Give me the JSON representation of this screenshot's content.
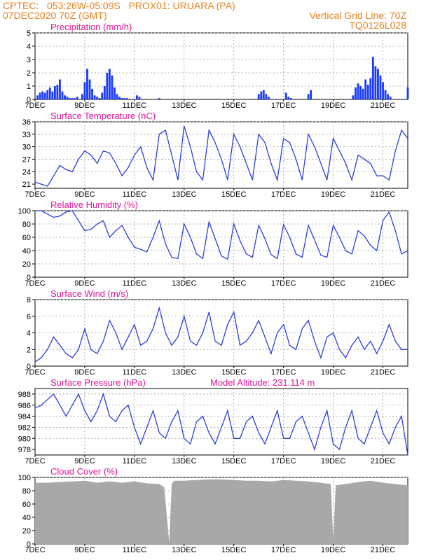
{
  "header": {
    "line1": "CPTEC:   053:26W-05:09S   PROX01: URUARA (PA)",
    "line2": "07DEC2020 70Z (GMT)",
    "right1": "Vertical Grid Line: 70Z",
    "right2": "TQ0126L028"
  },
  "x_ticks": [
    "7DEC",
    "9DEC",
    "11DEC",
    "13DEC",
    "15DEC",
    "17DEC",
    "19DEC",
    "21DEC"
  ],
  "panels": {
    "precip": {
      "title": "Precipitation (mm/h)",
      "yticks": [
        "0",
        "1",
        "2",
        "3",
        "4",
        "5"
      ]
    },
    "temp": {
      "title": "Surface Temperature (nC)",
      "yticks": [
        "21",
        "24",
        "27",
        "30",
        "33",
        "36"
      ]
    },
    "rh": {
      "title": "Relative Humidity (%)",
      "yticks": [
        "0",
        "20",
        "40",
        "60",
        "80",
        "100"
      ]
    },
    "wind": {
      "title": "Surface Wind (m/s)",
      "yticks": [
        "0",
        "2",
        "4",
        "6",
        "8"
      ]
    },
    "press": {
      "title": "Surface Pressure (hPa)",
      "extra": "Model Altitude: 231.114 m",
      "yticks": [
        "978",
        "980",
        "982",
        "984",
        "986",
        "988"
      ]
    },
    "cloud": {
      "title": "Cloud Cover (%)",
      "yticks": [
        "0",
        "20",
        "40",
        "60",
        "80",
        "100"
      ]
    }
  },
  "chart_data": [
    {
      "type": "bar",
      "title": "Precipitation (mm/h)",
      "ylabel": "mm/h",
      "ylim": [
        0,
        5
      ],
      "x_unit": "days since 7DEC2020",
      "x": [
        0.1,
        0.2,
        0.3,
        0.4,
        0.5,
        0.6,
        0.7,
        0.8,
        0.9,
        1.0,
        1.1,
        1.2,
        1.3,
        1.4,
        1.5,
        1.6,
        1.7,
        1.9,
        2.0,
        2.1,
        2.2,
        2.3,
        2.4,
        2.5,
        2.6,
        2.7,
        2.8,
        2.9,
        3.0,
        3.1,
        3.2,
        3.3,
        3.4,
        3.5,
        3.6,
        3.7,
        4.1,
        4.2,
        5.0,
        9.0,
        9.1,
        9.2,
        9.3,
        9.4,
        10.1,
        10.2,
        10.3,
        11.0,
        11.1,
        12.8,
        12.9,
        13.0,
        13.1,
        13.2,
        13.3,
        13.4,
        13.5,
        13.6,
        13.7,
        13.8,
        13.9,
        14.0,
        14.1,
        14.2,
        14.3,
        15.0
      ],
      "values": [
        0.3,
        0.5,
        0.6,
        0.5,
        0.7,
        0.9,
        0.6,
        1.0,
        1.1,
        1.5,
        0.6,
        0.3,
        0.2,
        0.1,
        0.1,
        0.1,
        0.2,
        0.4,
        1.3,
        2.3,
        1.5,
        0.8,
        0.3,
        0.2,
        0.1,
        0.5,
        1.0,
        2.0,
        2.3,
        1.8,
        0.9,
        0.4,
        0.2,
        0.1,
        0.1,
        0.1,
        0.3,
        0.2,
        0.1,
        0.4,
        0.6,
        0.7,
        0.4,
        0.2,
        0.5,
        0.2,
        0.1,
        0.4,
        0.7,
        0.3,
        0.9,
        1.2,
        1.0,
        0.8,
        1.5,
        1.1,
        1.6,
        3.2,
        2.5,
        2.3,
        1.8,
        1.3,
        0.7,
        0.4,
        0.2,
        0.9
      ]
    },
    {
      "type": "line",
      "title": "Surface Temperature (nC)",
      "ylim": [
        20,
        36
      ],
      "x_unit": "days since 7DEC2020",
      "x": [
        0,
        0.25,
        0.5,
        0.75,
        1,
        1.25,
        1.5,
        1.75,
        2,
        2.25,
        2.5,
        2.75,
        3,
        3.25,
        3.5,
        3.75,
        4,
        4.25,
        4.5,
        4.75,
        5,
        5.25,
        5.5,
        5.75,
        6,
        6.25,
        6.5,
        6.75,
        7,
        7.25,
        7.5,
        7.75,
        8,
        8.25,
        8.5,
        8.75,
        9,
        9.25,
        9.5,
        9.75,
        10,
        10.25,
        10.5,
        10.75,
        11,
        11.25,
        11.5,
        11.75,
        12,
        12.25,
        12.5,
        12.75,
        13,
        13.25,
        13.5,
        13.75,
        14,
        14.25,
        14.5,
        14.75,
        15
      ],
      "values": [
        21.5,
        21,
        20.5,
        23,
        25.5,
        24.5,
        24,
        27,
        29,
        28,
        26,
        29,
        28.5,
        26,
        23,
        25,
        28,
        30,
        25,
        22,
        33,
        34,
        28,
        22,
        35,
        30,
        24,
        22,
        34,
        31,
        27,
        22,
        33,
        30,
        26,
        22,
        33,
        31,
        26,
        22,
        32,
        31,
        27,
        22,
        33,
        30,
        26,
        22,
        32,
        29,
        26,
        22,
        28,
        27,
        26,
        23,
        23,
        22,
        29,
        34,
        32
      ]
    },
    {
      "type": "line",
      "title": "Relative Humidity (%)",
      "ylim": [
        0,
        100
      ],
      "x_unit": "days since 7DEC2020",
      "x": [
        0,
        0.25,
        0.5,
        0.75,
        1,
        1.25,
        1.5,
        1.75,
        2,
        2.25,
        2.5,
        2.75,
        3,
        3.25,
        3.5,
        3.75,
        4,
        4.25,
        4.5,
        4.75,
        5,
        5.25,
        5.5,
        5.75,
        6,
        6.25,
        6.5,
        6.75,
        7,
        7.25,
        7.5,
        7.75,
        8,
        8.25,
        8.5,
        8.75,
        9,
        9.25,
        9.5,
        9.75,
        10,
        10.25,
        10.5,
        10.75,
        11,
        11.25,
        11.5,
        11.75,
        12,
        12.25,
        12.5,
        12.75,
        13,
        13.25,
        13.5,
        13.75,
        14,
        14.25,
        14.5,
        14.75,
        15
      ],
      "values": [
        100,
        100,
        95,
        90,
        92,
        98,
        100,
        85,
        70,
        72,
        80,
        85,
        60,
        70,
        78,
        60,
        45,
        42,
        38,
        60,
        85,
        50,
        30,
        28,
        80,
        60,
        35,
        28,
        83,
        58,
        32,
        27,
        80,
        55,
        35,
        30,
        78,
        58,
        34,
        28,
        79,
        60,
        35,
        30,
        78,
        56,
        33,
        30,
        78,
        60,
        40,
        35,
        70,
        62,
        48,
        40,
        85,
        98,
        70,
        35,
        40
      ]
    },
    {
      "type": "line",
      "title": "Surface Wind (m/s)",
      "ylim": [
        0,
        8
      ],
      "x_unit": "days since 7DEC2020",
      "x": [
        0,
        0.25,
        0.5,
        0.75,
        1,
        1.25,
        1.5,
        1.75,
        2,
        2.25,
        2.5,
        2.75,
        3,
        3.25,
        3.5,
        3.75,
        4,
        4.25,
        4.5,
        4.75,
        5,
        5.25,
        5.5,
        5.75,
        6,
        6.25,
        6.5,
        6.75,
        7,
        7.25,
        7.5,
        7.75,
        8,
        8.25,
        8.5,
        8.75,
        9,
        9.25,
        9.5,
        9.75,
        10,
        10.25,
        10.5,
        10.75,
        11,
        11.25,
        11.5,
        11.75,
        12,
        12.25,
        12.5,
        12.75,
        13,
        13.25,
        13.5,
        13.75,
        14,
        14.25,
        14.5,
        14.75,
        15
      ],
      "values": [
        0.5,
        1,
        2,
        3.5,
        2.5,
        1.5,
        1,
        2,
        4.5,
        2,
        1.5,
        3,
        5.5,
        4,
        2,
        3.5,
        5,
        2.5,
        3,
        4.5,
        7,
        4,
        2.5,
        3.5,
        6,
        3,
        2.5,
        4,
        6.5,
        3,
        2.5,
        5,
        6.5,
        2.5,
        3,
        4,
        5.5,
        3.5,
        1.5,
        4,
        5,
        2.5,
        2,
        4.5,
        5.5,
        3,
        1,
        3.5,
        4,
        2,
        1,
        2.5,
        3.5,
        2,
        3,
        1.5,
        3,
        5,
        3,
        2,
        2
      ]
    },
    {
      "type": "line",
      "title": "Surface Pressure (hPa)",
      "ylim": [
        977,
        989
      ],
      "x_unit": "days since 7DEC2020",
      "x": [
        0,
        0.25,
        0.5,
        0.75,
        1,
        1.25,
        1.5,
        1.75,
        2,
        2.25,
        2.5,
        2.75,
        3,
        3.25,
        3.5,
        3.75,
        4,
        4.25,
        4.5,
        4.75,
        5,
        5.25,
        5.5,
        5.75,
        6,
        6.25,
        6.5,
        6.75,
        7,
        7.25,
        7.5,
        7.75,
        8,
        8.25,
        8.5,
        8.75,
        9,
        9.25,
        9.5,
        9.75,
        10,
        10.25,
        10.5,
        10.75,
        11,
        11.25,
        11.5,
        11.75,
        12,
        12.25,
        12.5,
        12.75,
        13,
        13.25,
        13.5,
        13.75,
        14,
        14.25,
        14.5,
        14.75,
        15
      ],
      "values": [
        985.5,
        986,
        987,
        988,
        986,
        984,
        986,
        988,
        985,
        983,
        985,
        988,
        984,
        983,
        985,
        986,
        982,
        979,
        982,
        985,
        981,
        980,
        983,
        985,
        980,
        979,
        983,
        984,
        981,
        979,
        982,
        985,
        980,
        980,
        983,
        984,
        981,
        979,
        982,
        985,
        980,
        980,
        983,
        984,
        981,
        978,
        982,
        985,
        979,
        978,
        982,
        985,
        980,
        979,
        982,
        985,
        981,
        979,
        982,
        984,
        977
      ]
    },
    {
      "type": "area",
      "title": "Cloud Cover (%)",
      "ylim": [
        0,
        100
      ],
      "x_unit": "days since 7DEC2020",
      "x": [
        0,
        0.5,
        1,
        1.5,
        2,
        2.5,
        3,
        3.5,
        4,
        4.5,
        5,
        5.2,
        5.4,
        5.5,
        5.6,
        6,
        6.5,
        7,
        7.5,
        8,
        8.5,
        9,
        9.5,
        10,
        10.5,
        11,
        11.5,
        11.9,
        12,
        12.1,
        12.5,
        13,
        13.5,
        14,
        14.5,
        15
      ],
      "values": [
        92,
        92,
        93,
        94,
        95,
        92,
        94,
        92,
        94,
        91,
        90,
        85,
        2,
        90,
        95,
        95,
        96,
        97,
        97,
        96,
        95,
        95,
        94,
        96,
        95,
        94,
        92,
        90,
        5,
        88,
        90,
        93,
        95,
        92,
        90,
        88
      ]
    }
  ]
}
